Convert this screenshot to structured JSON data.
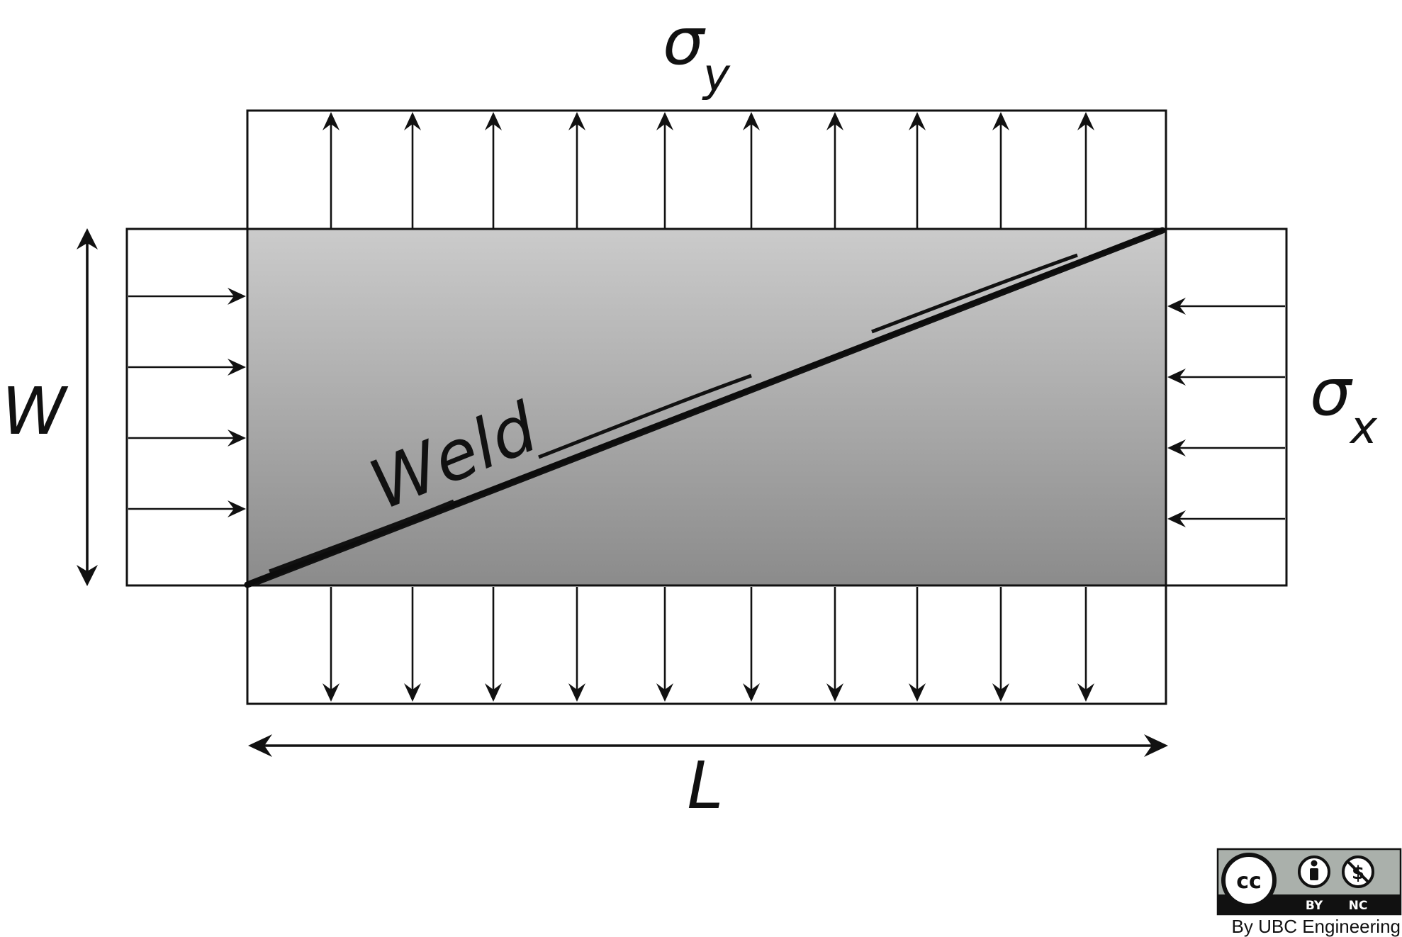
{
  "labels": {
    "sigma_y_symbol": "σ",
    "sigma_y_subscript": "y",
    "sigma_x_symbol": "σ",
    "sigma_x_subscript": "x",
    "width": "W",
    "length": "L",
    "weld": "Weld"
  },
  "license": {
    "cc": "cc",
    "by": "BY",
    "nc": "NC",
    "credit": "By UBC Engineering"
  },
  "colors": {
    "plate_top": "#cbcbcb",
    "plate_bottom": "#8b8b8b",
    "line": "#111111",
    "badge": "#aab0ab"
  },
  "icons": [
    "cc-icon",
    "attribution-icon",
    "noncommercial-icon"
  ]
}
